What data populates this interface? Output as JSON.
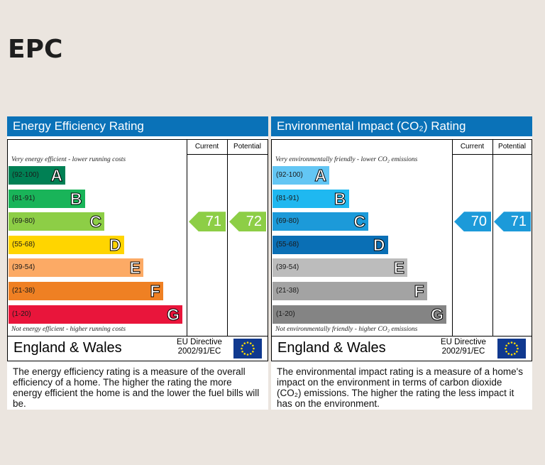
{
  "page": {
    "title": "EPC"
  },
  "chart_data": [
    {
      "type": "bar",
      "title": "Energy Efficiency Rating",
      "columns": [
        "Current",
        "Potential"
      ],
      "top_note": "Very energy efficient - lower running costs",
      "bottom_note": "Not energy efficient - higher running costs",
      "bands": [
        {
          "letter": "A",
          "range": "(92-100)",
          "color": "#008054"
        },
        {
          "letter": "B",
          "range": "(81-91)",
          "color": "#19b459"
        },
        {
          "letter": "C",
          "range": "(69-80)",
          "color": "#8dce46"
        },
        {
          "letter": "D",
          "range": "(55-68)",
          "color": "#ffd500"
        },
        {
          "letter": "E",
          "range": "(39-54)",
          "color": "#fcaa65"
        },
        {
          "letter": "F",
          "range": "(21-38)",
          "color": "#ef8023"
        },
        {
          "letter": "G",
          "range": "(1-20)",
          "color": "#e9153b"
        }
      ],
      "current": 71,
      "potential": 72,
      "current_color": "#8dce46",
      "potential_color": "#8dce46",
      "region": "England & Wales",
      "directive": [
        "EU Directive",
        "2002/91/EC"
      ],
      "description": "The energy efficiency rating is a measure of the overall efficiency of a home. The higher the rating the more energy efficient the home is and the lower the fuel bills will be."
    },
    {
      "type": "bar",
      "title": "Environmental Impact (CO₂) Rating",
      "columns": [
        "Current",
        "Potential"
      ],
      "top_note": "Very environmentally friendly - lower CO₂ emissions",
      "bottom_note": "Not environmentally friendly - higher CO₂ emissions",
      "bands": [
        {
          "letter": "A",
          "range": "(92-100)",
          "color": "#63c6f4"
        },
        {
          "letter": "B",
          "range": "(81-91)",
          "color": "#1fb8f0"
        },
        {
          "letter": "C",
          "range": "(69-80)",
          "color": "#1c9ad9"
        },
        {
          "letter": "D",
          "range": "(55-68)",
          "color": "#0a6fb5"
        },
        {
          "letter": "E",
          "range": "(39-54)",
          "color": "#bcbcbc"
        },
        {
          "letter": "F",
          "range": "(21-38)",
          "color": "#a3a3a3"
        },
        {
          "letter": "G",
          "range": "(1-20)",
          "color": "#848484"
        }
      ],
      "current": 70,
      "potential": 71,
      "current_color": "#1c9ad9",
      "potential_color": "#1c9ad9",
      "region": "England & Wales",
      "directive": [
        "EU Directive",
        "2002/91/EC"
      ],
      "description": "The environmental impact rating is a measure of a home's impact on the environment in terms of carbon dioxide (CO₂) emissions. The higher the rating the less impact it has on the environment."
    }
  ]
}
